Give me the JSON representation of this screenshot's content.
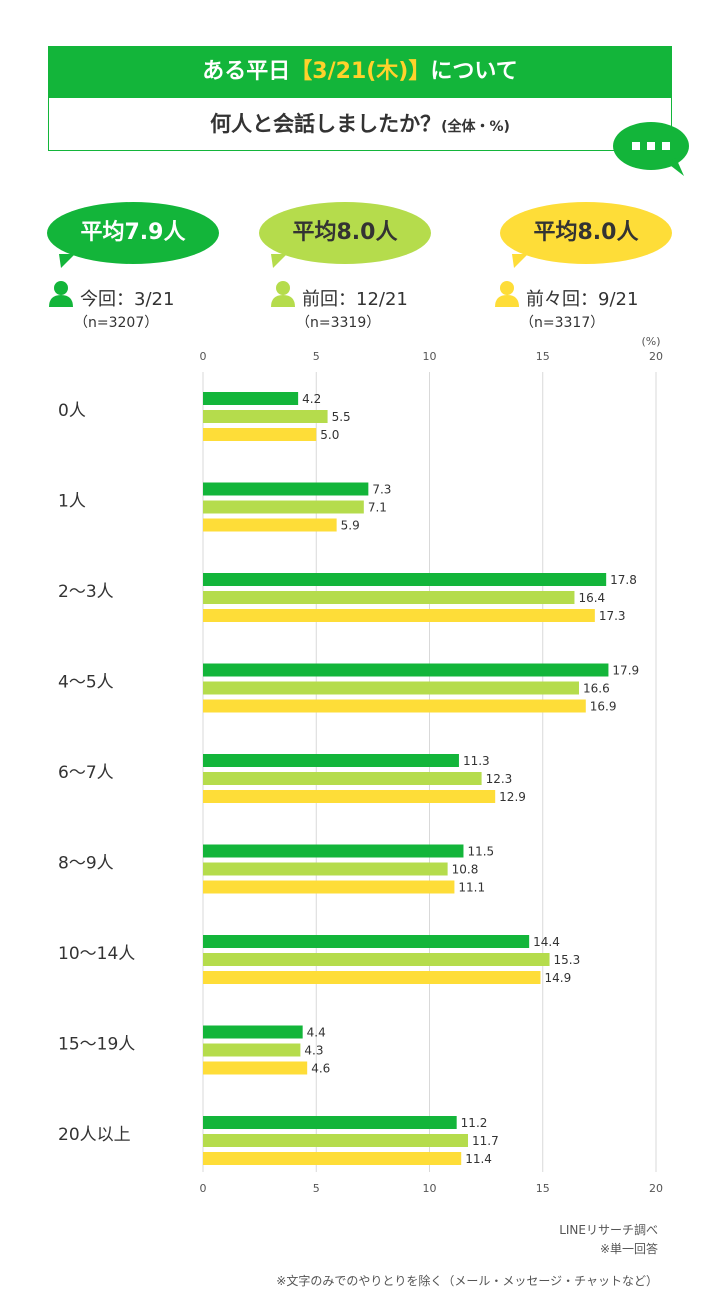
{
  "header": {
    "line1_prefix": "ある平日",
    "line1_highlight": "【3/21(木)】",
    "line1_suffix": "について",
    "line2_main": "何人と会話しましたか？",
    "line2_note": "(全体・%)"
  },
  "legend": [
    {
      "avg": "平均7.9人",
      "period": "今回：3/21",
      "n": "（n=3207）",
      "color": "#13b53a",
      "text_color": "#ffffff"
    },
    {
      "avg": "平均8.0人",
      "period": "前回：12/21",
      "n": "（n=3319）",
      "color": "#b5dc4c",
      "text_color": "#333333"
    },
    {
      "avg": "平均8.0人",
      "period": "前々回：9/21",
      "n": "（n=3317）",
      "color": "#fedd38",
      "text_color": "#333333"
    }
  ],
  "icons": {
    "chat": "chat-bubble-icon",
    "person": "person-icon"
  },
  "chart_data": {
    "type": "bar",
    "orientation": "horizontal",
    "unit_label": "(%)",
    "xlim": [
      0,
      20
    ],
    "xticks": [
      "0",
      "5",
      "10",
      "15",
      "20"
    ],
    "grid": true,
    "categories": [
      "0人",
      "1人",
      "2〜3人",
      "4〜5人",
      "6〜7人",
      "8〜9人",
      "10〜14人",
      "15〜19人",
      "20人以上"
    ],
    "series": [
      {
        "color": "#13b53a",
        "values": [
          4.2,
          7.3,
          17.8,
          17.9,
          11.3,
          11.5,
          14.4,
          4.4,
          11.2
        ],
        "labels": [
          "4.2",
          "7.3",
          "17.8",
          "17.9",
          "11.3",
          "11.5",
          "14.4",
          "4.4",
          "11.2"
        ]
      },
      {
        "color": "#b5dc4c",
        "values": [
          5.5,
          7.1,
          16.4,
          16.6,
          12.3,
          10.8,
          15.3,
          4.3,
          11.7
        ],
        "labels": [
          "5.5",
          "7.1",
          "16.4",
          "16.6",
          "12.3",
          "10.8",
          "15.3",
          "4.3",
          "11.7"
        ]
      },
      {
        "color": "#fedd38",
        "values": [
          5.0,
          5.9,
          17.3,
          16.9,
          12.9,
          11.1,
          14.9,
          4.6,
          11.4
        ],
        "labels": [
          "5.0",
          "5.9",
          "17.3",
          "16.9",
          "12.9",
          "11.1",
          "14.9",
          "4.6",
          "11.4"
        ]
      }
    ]
  },
  "footer": {
    "source": "LINEリサーチ調べ",
    "note1": "※単一回答",
    "note2": "※文字のみでのやりとりを除く（メール・メッセージ・チャットなど）"
  }
}
